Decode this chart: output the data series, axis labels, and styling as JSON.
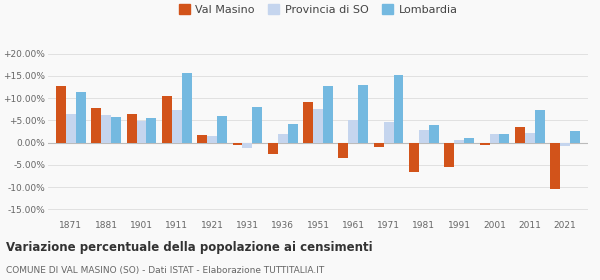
{
  "years": [
    1871,
    1881,
    1901,
    1911,
    1921,
    1931,
    1936,
    1951,
    1961,
    1971,
    1981,
    1991,
    2001,
    2011,
    2021
  ],
  "val_masino": [
    12.8,
    7.9,
    6.5,
    10.5,
    1.8,
    -0.5,
    -2.5,
    9.2,
    -3.5,
    -1.0,
    -6.5,
    -5.5,
    -0.5,
    3.5,
    -10.3
  ],
  "provincia_so": [
    6.5,
    6.3,
    4.8,
    7.3,
    1.5,
    -1.2,
    2.0,
    7.5,
    5.1,
    4.7,
    2.9,
    0.6,
    1.9,
    2.2,
    -0.8
  ],
  "lombardia": [
    11.5,
    5.7,
    5.6,
    15.7,
    6.1,
    8.0,
    4.3,
    12.7,
    13.0,
    15.3,
    4.0,
    1.0,
    2.0,
    7.3,
    2.7
  ],
  "color_val_masino": "#d2531a",
  "color_provincia": "#c5d5ee",
  "color_lombardia": "#74b9e0",
  "title": "Variazione percentuale della popolazione ai censimenti",
  "subtitle": "COMUNE DI VAL MASINO (SO) - Dati ISTAT - Elaborazione TUTTITALIA.IT",
  "legend_labels": [
    "Val Masino",
    "Provincia di SO",
    "Lombardia"
  ],
  "ylim": [
    -17,
    22
  ],
  "yticks": [
    -15,
    -10,
    -5,
    0,
    5,
    10,
    15,
    20
  ],
  "ytick_labels": [
    "-15.00%",
    "-10.00%",
    "-5.00%",
    "0.00%",
    "+5.00%",
    "+10.00%",
    "+15.00%",
    "+20.00%"
  ],
  "background_color": "#f9f9f9",
  "grid_color": "#dddddd"
}
